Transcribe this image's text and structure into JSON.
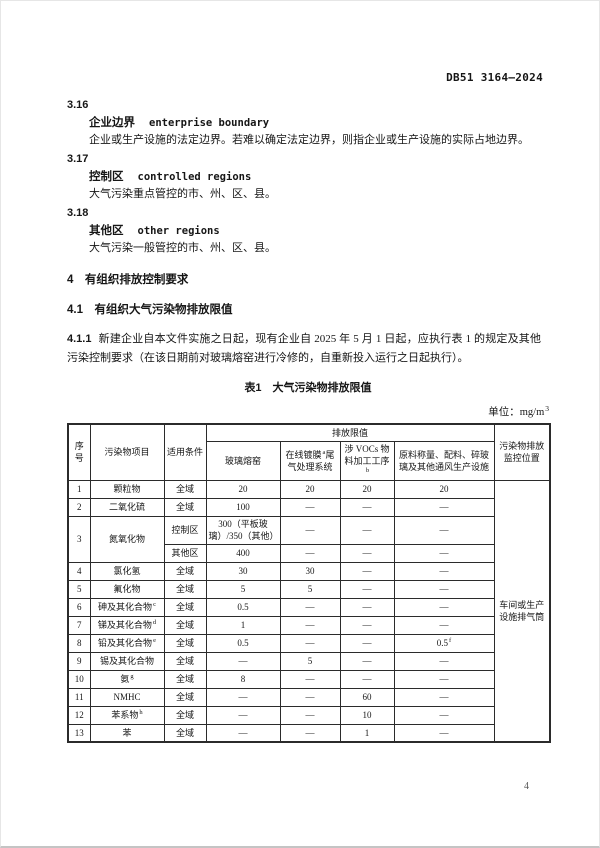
{
  "page": {
    "code": "DB51 3164—2024",
    "number": "4"
  },
  "definitions": [
    {
      "number": "3.16",
      "term_zh": "企业边界",
      "term_en": "enterprise boundary",
      "definition": "企业或生产设施的法定边界。若难以确定法定边界，则指企业或生产设施的实际占地边界。"
    },
    {
      "number": "3.17",
      "term_zh": "控制区",
      "term_en": "controlled regions",
      "definition": "大气污染重点管控的市、州、区、县。"
    },
    {
      "number": "3.18",
      "term_zh": "其他区",
      "term_en": "other regions",
      "definition": "大气污染一般管控的市、州、区、县。"
    }
  ],
  "sections": {
    "h4": "4　有组织排放控制要求",
    "h41": "4.1　有组织大气污染物排放限值",
    "p411_num": "4.1.1",
    "p411_text": "新建企业自本文件实施之日起，现有企业自 2025 年 5 月 1 日起，应执行表 1 的规定及其他污染控制要求（在该日期前对玻璃熔窑进行冷修的，自重新投入运行之日起执行）。"
  },
  "table": {
    "title": "表1　大气污染物排放限值",
    "unit": [
      "单位：mg/m",
      {
        "sup": "3"
      }
    ],
    "header": {
      "seq": "序号",
      "pollutant": "污染物项目",
      "condition": "适用条件",
      "limits": "排放限值",
      "location": "污染物排放监控位置",
      "sub": [
        [
          "玻璃熔窑"
        ],
        [
          "在线镀膜",
          {
            "sup": "a"
          },
          "尾气处理系统"
        ],
        [
          "涉 VOCs 物料加工工序",
          {
            "sup": "b"
          }
        ],
        [
          "原料称量、配料、碎玻璃及其他通风生产设施"
        ]
      ]
    },
    "location_cell": "车间或生产设施排气筒",
    "rows": [
      {
        "no": "1",
        "name": "颗粒物",
        "cond": [
          {
            "c": "全域",
            "vals": [
              "20",
              "20",
              "20",
              "20"
            ]
          }
        ]
      },
      {
        "no": "2",
        "name": "二氧化硫",
        "cond": [
          {
            "c": "全域",
            "vals": [
              "100",
              "—",
              "—",
              "—"
            ]
          }
        ]
      },
      {
        "no": "3",
        "name": "氮氧化物",
        "cond": [
          {
            "c": "控制区",
            "tall": true,
            "vals": [
              "300（平板玻璃）/350（其他）",
              "—",
              "—",
              "—"
            ]
          },
          {
            "c": "其他区",
            "vals": [
              "400",
              "—",
              "—",
              "—"
            ]
          }
        ]
      },
      {
        "no": "4",
        "name": "氯化氢",
        "cond": [
          {
            "c": "全域",
            "vals": [
              "30",
              "30",
              "—",
              "—"
            ]
          }
        ]
      },
      {
        "no": "5",
        "name": "氟化物",
        "cond": [
          {
            "c": "全域",
            "vals": [
              "5",
              "5",
              "—",
              "—"
            ]
          }
        ]
      },
      {
        "no": "6",
        "name": [
          "砷及其化合物",
          {
            "sup": "c"
          }
        ],
        "cond": [
          {
            "c": "全域",
            "vals": [
              "0.5",
              "—",
              "—",
              "—"
            ]
          }
        ]
      },
      {
        "no": "7",
        "name": [
          "锑及其化合物",
          {
            "sup": "d"
          }
        ],
        "cond": [
          {
            "c": "全域",
            "vals": [
              "1",
              "—",
              "—",
              "—"
            ]
          }
        ]
      },
      {
        "no": "8",
        "name": [
          "铅及其化合物",
          {
            "sup": "e"
          }
        ],
        "cond": [
          {
            "c": "全域",
            "vals": [
              "0.5",
              "—",
              "—",
              [
                "0.5",
                {
                  "sup": "f"
                }
              ]
            ]
          }
        ]
      },
      {
        "no": "9",
        "name": "锡及其化合物",
        "cond": [
          {
            "c": "全域",
            "vals": [
              "—",
              "5",
              "—",
              "—"
            ]
          }
        ]
      },
      {
        "no": "10",
        "name": [
          "氨",
          {
            "sup": "g"
          }
        ],
        "cond": [
          {
            "c": "全域",
            "vals": [
              "8",
              "—",
              "—",
              "—"
            ]
          }
        ]
      },
      {
        "no": "11",
        "name": "NMHC",
        "cond": [
          {
            "c": "全域",
            "vals": [
              "—",
              "—",
              "60",
              "—"
            ]
          }
        ]
      },
      {
        "no": "12",
        "name": [
          "苯系物",
          {
            "sup": "h"
          }
        ],
        "cond": [
          {
            "c": "全域",
            "vals": [
              "—",
              "—",
              "10",
              "—"
            ]
          }
        ]
      },
      {
        "no": "13",
        "name": "苯",
        "cond": [
          {
            "c": "全域",
            "vals": [
              "—",
              "—",
              "1",
              "—"
            ]
          }
        ]
      }
    ]
  }
}
